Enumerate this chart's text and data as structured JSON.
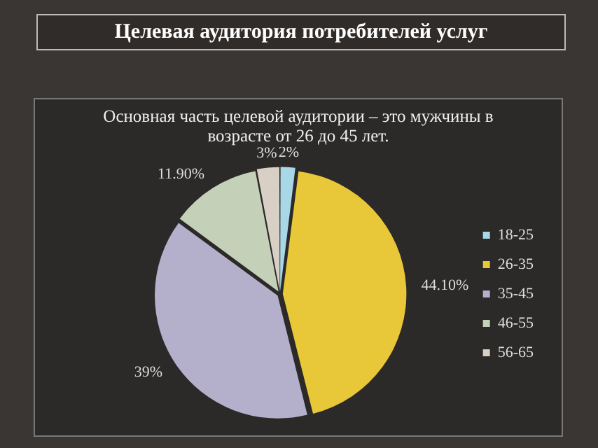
{
  "chart_data": {
    "type": "pie",
    "title": "Целевая аудитория потребителей услуг",
    "subtitle": "Основная часть целевой аудитории – это мужчины в возрасте от 26 до 45 лет.",
    "categories": [
      "18-25",
      "26-35",
      "35-45",
      "46-55",
      "56-65"
    ],
    "values": [
      2,
      44.1,
      39,
      11.9,
      3
    ],
    "value_labels": [
      "2%",
      "44.10%",
      "39%",
      "11.90%",
      "3%"
    ],
    "colors": [
      "#a8d8e8",
      "#e8c838",
      "#b4b0cc",
      "#c4d0b8",
      "#d8d0c4"
    ],
    "legend": "right"
  }
}
